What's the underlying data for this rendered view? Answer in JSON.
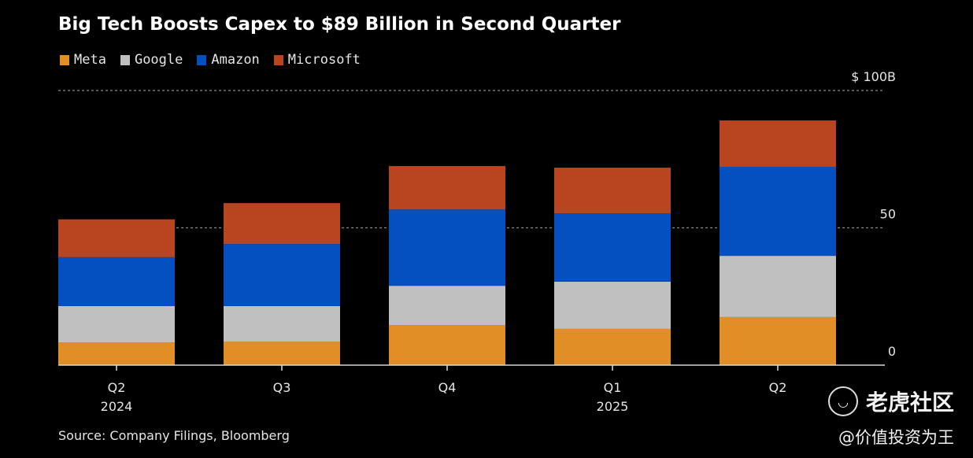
{
  "chart_data": {
    "type": "bar",
    "stacked": true,
    "title": "Big Tech Boosts Capex to $89 Billion in Second Quarter",
    "categories": [
      "Q2",
      "Q3",
      "Q4",
      "Q1",
      "Q2"
    ],
    "category_sublabels": [
      "2024",
      "",
      "",
      "2025",
      ""
    ],
    "series": [
      {
        "name": "Meta",
        "color": "#e08e25",
        "values": [
          8.3,
          8.6,
          14.6,
          13.2,
          17.5
        ]
      },
      {
        "name": "Google",
        "color": "#c0c0c0",
        "values": [
          13.2,
          12.9,
          14.3,
          17.2,
          22.3
        ]
      },
      {
        "name": "Amazon",
        "color": "#0450c0",
        "values": [
          17.8,
          22.6,
          27.8,
          24.9,
          32.4
        ]
      },
      {
        "name": "Microsoft",
        "color": "#b84420",
        "values": [
          13.8,
          14.9,
          15.8,
          16.6,
          16.9
        ]
      }
    ],
    "ylim": [
      0,
      100
    ],
    "yticks": [
      0,
      50,
      100
    ],
    "ytick_labels": [
      "0",
      "50",
      "$ 100B"
    ],
    "y_axis_position": "right",
    "grid": true,
    "legend_position": "top-left",
    "xlabel": "",
    "ylabel": ""
  },
  "footer": {
    "source": "Source: Company Filings, Bloomberg"
  },
  "watermark": {
    "icon": "tiger-logo-icon",
    "name": "老虎社区",
    "handle": "@价值投资为王"
  }
}
